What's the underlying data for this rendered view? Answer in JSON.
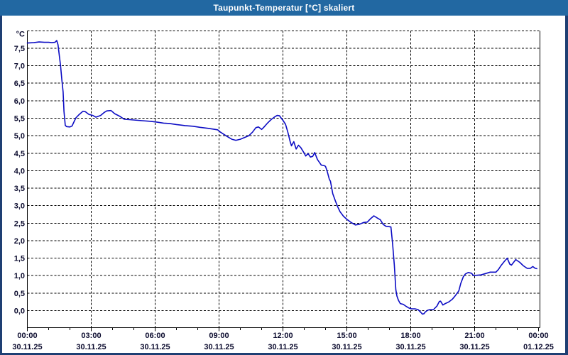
{
  "window": {
    "title": "Taupunkt-Temperatur [°C] skaliert",
    "titlebar_color": "#2268a2",
    "border_color": "#1e3f73",
    "background": "#ffffff"
  },
  "chart_data": {
    "type": "line",
    "title": "Taupunkt-Temperatur [°C] skaliert",
    "y_unit_label": "°C",
    "xlabel": "",
    "ylabel": "Taupunkt-Temperatur [°C]",
    "grid": "dashed-black",
    "legend_position": "none",
    "line_color": "#0c0cc4",
    "grid_color": "#000000",
    "text_color": "#0b0b2e",
    "ylim": [
      -0.49,
      8.0
    ],
    "xlim_hours": [
      0,
      24
    ],
    "y_gridline_step": 0.5,
    "x_major_step_hours": 3,
    "x_minor_step_hours": 1,
    "y_ticks": [
      {
        "value": 0.0,
        "label": "0,0"
      },
      {
        "value": 0.5,
        "label": "0,5"
      },
      {
        "value": 1.0,
        "label": "1,0"
      },
      {
        "value": 1.5,
        "label": "1,5"
      },
      {
        "value": 2.0,
        "label": "2,0"
      },
      {
        "value": 2.5,
        "label": "2,5"
      },
      {
        "value": 3.0,
        "label": "3,0"
      },
      {
        "value": 3.5,
        "label": "3,5"
      },
      {
        "value": 4.0,
        "label": "4,0"
      },
      {
        "value": 4.5,
        "label": "4,5"
      },
      {
        "value": 5.0,
        "label": "5,0"
      },
      {
        "value": 5.5,
        "label": "5,5"
      },
      {
        "value": 6.0,
        "label": "6,0"
      },
      {
        "value": 6.5,
        "label": "6,5"
      },
      {
        "value": 7.0,
        "label": "7,0"
      },
      {
        "value": 7.5,
        "label": "7,5"
      }
    ],
    "x_ticks": [
      {
        "hour": 0,
        "time": "00:00",
        "date": "30.11.25"
      },
      {
        "hour": 3,
        "time": "03:00",
        "date": "30.11.25"
      },
      {
        "hour": 6,
        "time": "06:00",
        "date": "30.11.25"
      },
      {
        "hour": 9,
        "time": "09:00",
        "date": "30.11.25"
      },
      {
        "hour": 12,
        "time": "12:00",
        "date": "30.11.25"
      },
      {
        "hour": 15,
        "time": "15:00",
        "date": "30.11.25"
      },
      {
        "hour": 18,
        "time": "18:00",
        "date": "30.11.25"
      },
      {
        "hour": 21,
        "time": "21:00",
        "date": "30.11.25"
      },
      {
        "hour": 24,
        "time": "00:00",
        "date": "01.12.25"
      }
    ],
    "series": [
      {
        "name": "Taupunkt-Temperatur",
        "points": [
          [
            0.0,
            7.65
          ],
          [
            0.3,
            7.66
          ],
          [
            0.55,
            7.68
          ],
          [
            0.8,
            7.67
          ],
          [
            1.0,
            7.67
          ],
          [
            1.15,
            7.66
          ],
          [
            1.3,
            7.67
          ],
          [
            1.38,
            7.72
          ],
          [
            1.44,
            7.6
          ],
          [
            1.5,
            7.3
          ],
          [
            1.56,
            7.0
          ],
          [
            1.62,
            6.6
          ],
          [
            1.68,
            6.25
          ],
          [
            1.72,
            5.7
          ],
          [
            1.78,
            5.3
          ],
          [
            1.84,
            5.26
          ],
          [
            2.0,
            5.25
          ],
          [
            2.1,
            5.28
          ],
          [
            2.17,
            5.37
          ],
          [
            2.28,
            5.51
          ],
          [
            2.44,
            5.61
          ],
          [
            2.61,
            5.7
          ],
          [
            2.72,
            5.69
          ],
          [
            2.89,
            5.61
          ],
          [
            3.07,
            5.58
          ],
          [
            3.22,
            5.53
          ],
          [
            3.44,
            5.58
          ],
          [
            3.6,
            5.66
          ],
          [
            3.73,
            5.71
          ],
          [
            3.93,
            5.72
          ],
          [
            4.1,
            5.63
          ],
          [
            4.33,
            5.56
          ],
          [
            4.55,
            5.47
          ],
          [
            4.8,
            5.46
          ],
          [
            5.0,
            5.45
          ],
          [
            5.4,
            5.43
          ],
          [
            5.8,
            5.41
          ],
          [
            6.07,
            5.39
          ],
          [
            6.4,
            5.36
          ],
          [
            6.67,
            5.35
          ],
          [
            7.0,
            5.32
          ],
          [
            7.4,
            5.29
          ],
          [
            7.78,
            5.27
          ],
          [
            8.1,
            5.24
          ],
          [
            8.5,
            5.21
          ],
          [
            8.93,
            5.17
          ],
          [
            9.07,
            5.1
          ],
          [
            9.4,
            4.97
          ],
          [
            9.6,
            4.9
          ],
          [
            9.79,
            4.87
          ],
          [
            10.0,
            4.9
          ],
          [
            10.2,
            4.95
          ],
          [
            10.4,
            5.0
          ],
          [
            10.57,
            5.1
          ],
          [
            10.73,
            5.23
          ],
          [
            10.85,
            5.25
          ],
          [
            11.0,
            5.18
          ],
          [
            11.1,
            5.24
          ],
          [
            11.29,
            5.37
          ],
          [
            11.46,
            5.47
          ],
          [
            11.62,
            5.54
          ],
          [
            11.73,
            5.58
          ],
          [
            11.84,
            5.57
          ],
          [
            11.96,
            5.47
          ],
          [
            12.0,
            5.44
          ],
          [
            12.12,
            5.33
          ],
          [
            12.23,
            5.1
          ],
          [
            12.34,
            4.83
          ],
          [
            12.4,
            4.71
          ],
          [
            12.51,
            4.83
          ],
          [
            12.62,
            4.62
          ],
          [
            12.73,
            4.73
          ],
          [
            12.84,
            4.66
          ],
          [
            12.98,
            4.52
          ],
          [
            13.07,
            4.42
          ],
          [
            13.18,
            4.49
          ],
          [
            13.29,
            4.39
          ],
          [
            13.4,
            4.41
          ],
          [
            13.49,
            4.52
          ],
          [
            13.62,
            4.32
          ],
          [
            13.71,
            4.24
          ],
          [
            13.8,
            4.16
          ],
          [
            13.96,
            4.14
          ],
          [
            14.0,
            4.12
          ],
          [
            14.07,
            4.0
          ],
          [
            14.18,
            3.75
          ],
          [
            14.23,
            3.7
          ],
          [
            14.34,
            3.34
          ],
          [
            14.46,
            3.14
          ],
          [
            14.57,
            2.97
          ],
          [
            14.68,
            2.83
          ],
          [
            14.84,
            2.7
          ],
          [
            15.0,
            2.61
          ],
          [
            15.2,
            2.52
          ],
          [
            15.4,
            2.45
          ],
          [
            15.6,
            2.47
          ],
          [
            15.8,
            2.52
          ],
          [
            15.96,
            2.53
          ],
          [
            16.1,
            2.62
          ],
          [
            16.27,
            2.71
          ],
          [
            16.45,
            2.64
          ],
          [
            16.57,
            2.6
          ],
          [
            16.7,
            2.47
          ],
          [
            16.84,
            2.41
          ],
          [
            17.0,
            2.4
          ],
          [
            17.07,
            2.39
          ],
          [
            17.15,
            1.9
          ],
          [
            17.23,
            1.3
          ],
          [
            17.3,
            0.6
          ],
          [
            17.35,
            0.42
          ],
          [
            17.42,
            0.3
          ],
          [
            17.51,
            0.2
          ],
          [
            17.65,
            0.18
          ],
          [
            17.79,
            0.12
          ],
          [
            17.9,
            0.08
          ],
          [
            18.03,
            0.05
          ],
          [
            18.2,
            0.05
          ],
          [
            18.34,
            0.03
          ],
          [
            18.46,
            -0.04
          ],
          [
            18.55,
            -0.1
          ],
          [
            18.62,
            -0.09
          ],
          [
            18.68,
            -0.04
          ],
          [
            18.79,
            0.01
          ],
          [
            18.9,
            0.03
          ],
          [
            19.07,
            0.03
          ],
          [
            19.23,
            0.13
          ],
          [
            19.34,
            0.26
          ],
          [
            19.4,
            0.27
          ],
          [
            19.51,
            0.16
          ],
          [
            19.62,
            0.2
          ],
          [
            19.79,
            0.25
          ],
          [
            19.96,
            0.33
          ],
          [
            20.07,
            0.41
          ],
          [
            20.18,
            0.5
          ],
          [
            20.26,
            0.57
          ],
          [
            20.35,
            0.78
          ],
          [
            20.47,
            0.97
          ],
          [
            20.57,
            1.05
          ],
          [
            20.7,
            1.09
          ],
          [
            20.85,
            1.07
          ],
          [
            20.95,
            1.0
          ],
          [
            21.1,
            1.01
          ],
          [
            21.3,
            1.02
          ],
          [
            21.51,
            1.06
          ],
          [
            21.73,
            1.1
          ],
          [
            22.0,
            1.1
          ],
          [
            22.12,
            1.18
          ],
          [
            22.23,
            1.28
          ],
          [
            22.4,
            1.41
          ],
          [
            22.53,
            1.5
          ],
          [
            22.65,
            1.33
          ],
          [
            22.73,
            1.3
          ],
          [
            22.93,
            1.46
          ],
          [
            23.12,
            1.38
          ],
          [
            23.29,
            1.28
          ],
          [
            23.46,
            1.21
          ],
          [
            23.62,
            1.21
          ],
          [
            23.73,
            1.26
          ],
          [
            23.84,
            1.21
          ],
          [
            23.92,
            1.2
          ]
        ]
      }
    ]
  }
}
